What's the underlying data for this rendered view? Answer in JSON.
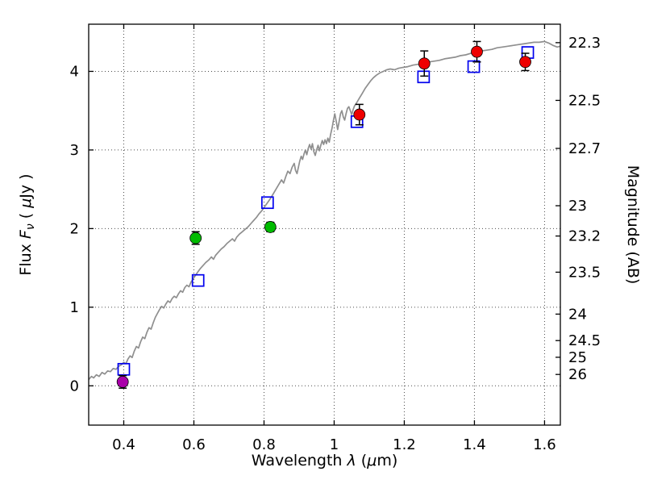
{
  "chart_data": {
    "type": "line",
    "title": "",
    "xlabel_segments": [
      {
        "t": "Wavelength  ",
        "i": false
      },
      {
        "t": "λ",
        "i": true
      },
      {
        "t": " (",
        "i": false
      },
      {
        "t": "μ",
        "i": true
      },
      {
        "t": "m)",
        "i": false
      }
    ],
    "ylabel_left_segments": [
      {
        "t": "Flux  ",
        "i": false
      },
      {
        "t": "F",
        "i": true
      },
      {
        "t": "ν",
        "i": true,
        "sub": true
      },
      {
        "t": "  ( ",
        "i": false
      },
      {
        "t": "μ",
        "i": true
      },
      {
        "t": "Jy )",
        "i": false
      }
    ],
    "ylabel_right": "Magnitude (AB)",
    "xlim": [
      0.3,
      1.645
    ],
    "ylim": [
      -0.5,
      4.6
    ],
    "grid": true,
    "legend": "none",
    "x_ticks": [
      0.4,
      0.6,
      0.8,
      1.0,
      1.2,
      1.4,
      1.6
    ],
    "x_tick_labels": [
      "0.4",
      "0.6",
      "0.8",
      "1",
      "1.2",
      "1.4",
      "1.6"
    ],
    "y_ticks_left": [
      0,
      1,
      2,
      3,
      4
    ],
    "y_tick_labels_left": [
      "0",
      "1",
      "2",
      "3",
      "4"
    ],
    "y_ticks_right": [
      22.3,
      22.5,
      22.7,
      23,
      23.2,
      23.5,
      24,
      24.5,
      25,
      26
    ],
    "y_tick_labels_right": [
      "22.3",
      "22.5",
      "22.7",
      "23",
      "23.2",
      "23.5",
      "24",
      "24.5",
      "25",
      "26"
    ],
    "mag_zero_point": 23.9,
    "colors": {
      "spectrum": "#8f8f8f",
      "model_square": "#0000ee",
      "errorbar": "#000000",
      "grid": "#4d4d4d",
      "axis": "#000000"
    },
    "series": [
      {
        "name": "galaxy-model-spectrum",
        "type": "line",
        "color": "#8f8f8f",
        "xy": [
          [
            0.3,
            0.08
          ],
          [
            0.308,
            0.12
          ],
          [
            0.314,
            0.1
          ],
          [
            0.322,
            0.14
          ],
          [
            0.33,
            0.12
          ],
          [
            0.338,
            0.17
          ],
          [
            0.346,
            0.15
          ],
          [
            0.354,
            0.19
          ],
          [
            0.362,
            0.18
          ],
          [
            0.37,
            0.22
          ],
          [
            0.378,
            0.21
          ],
          [
            0.386,
            0.25
          ],
          [
            0.394,
            0.27
          ],
          [
            0.4,
            0.3
          ],
          [
            0.406,
            0.28
          ],
          [
            0.412,
            0.34
          ],
          [
            0.418,
            0.38
          ],
          [
            0.424,
            0.36
          ],
          [
            0.43,
            0.44
          ],
          [
            0.436,
            0.5
          ],
          [
            0.442,
            0.48
          ],
          [
            0.448,
            0.56
          ],
          [
            0.454,
            0.62
          ],
          [
            0.46,
            0.6
          ],
          [
            0.466,
            0.68
          ],
          [
            0.472,
            0.74
          ],
          [
            0.478,
            0.72
          ],
          [
            0.484,
            0.8
          ],
          [
            0.49,
            0.87
          ],
          [
            0.496,
            0.92
          ],
          [
            0.502,
            0.97
          ],
          [
            0.508,
            1.01
          ],
          [
            0.514,
            0.99
          ],
          [
            0.52,
            1.04
          ],
          [
            0.526,
            1.08
          ],
          [
            0.532,
            1.06
          ],
          [
            0.538,
            1.11
          ],
          [
            0.544,
            1.14
          ],
          [
            0.55,
            1.12
          ],
          [
            0.556,
            1.17
          ],
          [
            0.562,
            1.21
          ],
          [
            0.568,
            1.19
          ],
          [
            0.574,
            1.25
          ],
          [
            0.58,
            1.28
          ],
          [
            0.586,
            1.26
          ],
          [
            0.592,
            1.32
          ],
          [
            0.598,
            1.36
          ],
          [
            0.604,
            1.4
          ],
          [
            0.61,
            1.44
          ],
          [
            0.618,
            1.49
          ],
          [
            0.626,
            1.53
          ],
          [
            0.634,
            1.57
          ],
          [
            0.642,
            1.6
          ],
          [
            0.65,
            1.64
          ],
          [
            0.656,
            1.61
          ],
          [
            0.662,
            1.66
          ],
          [
            0.67,
            1.7
          ],
          [
            0.678,
            1.74
          ],
          [
            0.686,
            1.77
          ],
          [
            0.694,
            1.81
          ],
          [
            0.702,
            1.84
          ],
          [
            0.71,
            1.87
          ],
          [
            0.716,
            1.84
          ],
          [
            0.722,
            1.89
          ],
          [
            0.73,
            1.93
          ],
          [
            0.738,
            1.96
          ],
          [
            0.746,
            1.99
          ],
          [
            0.754,
            2.02
          ],
          [
            0.762,
            2.06
          ],
          [
            0.77,
            2.1
          ],
          [
            0.778,
            2.14
          ],
          [
            0.786,
            2.19
          ],
          [
            0.794,
            2.23
          ],
          [
            0.802,
            2.28
          ],
          [
            0.81,
            2.33
          ],
          [
            0.818,
            2.38
          ],
          [
            0.826,
            2.44
          ],
          [
            0.834,
            2.5
          ],
          [
            0.842,
            2.56
          ],
          [
            0.85,
            2.62
          ],
          [
            0.856,
            2.58
          ],
          [
            0.862,
            2.66
          ],
          [
            0.868,
            2.73
          ],
          [
            0.874,
            2.7
          ],
          [
            0.88,
            2.78
          ],
          [
            0.886,
            2.83
          ],
          [
            0.89,
            2.74
          ],
          [
            0.894,
            2.7
          ],
          [
            0.898,
            2.78
          ],
          [
            0.902,
            2.86
          ],
          [
            0.906,
            2.92
          ],
          [
            0.91,
            2.88
          ],
          [
            0.914,
            2.95
          ],
          [
            0.918,
            3.0
          ],
          [
            0.922,
            2.94
          ],
          [
            0.926,
            3.02
          ],
          [
            0.93,
            3.07
          ],
          [
            0.934,
            3.01
          ],
          [
            0.938,
            3.08
          ],
          [
            0.942,
            2.98
          ],
          [
            0.946,
            2.93
          ],
          [
            0.95,
            3.0
          ],
          [
            0.954,
            3.06
          ],
          [
            0.958,
            2.99
          ],
          [
            0.962,
            3.06
          ],
          [
            0.966,
            3.12
          ],
          [
            0.97,
            3.07
          ],
          [
            0.974,
            3.13
          ],
          [
            0.978,
            3.08
          ],
          [
            0.982,
            3.15
          ],
          [
            0.986,
            3.1
          ],
          [
            0.99,
            3.2
          ],
          [
            0.994,
            3.28
          ],
          [
            0.998,
            3.38
          ],
          [
            1.002,
            3.46
          ],
          [
            1.006,
            3.36
          ],
          [
            1.01,
            3.26
          ],
          [
            1.014,
            3.36
          ],
          [
            1.018,
            3.46
          ],
          [
            1.022,
            3.5
          ],
          [
            1.026,
            3.42
          ],
          [
            1.03,
            3.38
          ],
          [
            1.034,
            3.46
          ],
          [
            1.038,
            3.53
          ],
          [
            1.042,
            3.55
          ],
          [
            1.046,
            3.5
          ],
          [
            1.05,
            3.45
          ],
          [
            1.054,
            3.51
          ],
          [
            1.058,
            3.56
          ],
          [
            1.064,
            3.6
          ],
          [
            1.072,
            3.66
          ],
          [
            1.08,
            3.72
          ],
          [
            1.088,
            3.78
          ],
          [
            1.096,
            3.83
          ],
          [
            1.104,
            3.88
          ],
          [
            1.112,
            3.92
          ],
          [
            1.12,
            3.95
          ],
          [
            1.13,
            3.98
          ],
          [
            1.14,
            4.0
          ],
          [
            1.15,
            4.02
          ],
          [
            1.16,
            4.03
          ],
          [
            1.172,
            4.02
          ],
          [
            1.184,
            4.04
          ],
          [
            1.196,
            4.05
          ],
          [
            1.21,
            4.06
          ],
          [
            1.225,
            4.08
          ],
          [
            1.24,
            4.09
          ],
          [
            1.255,
            4.11
          ],
          [
            1.27,
            4.12
          ],
          [
            1.285,
            4.13
          ],
          [
            1.3,
            4.14
          ],
          [
            1.315,
            4.16
          ],
          [
            1.33,
            4.17
          ],
          [
            1.345,
            4.18
          ],
          [
            1.36,
            4.2
          ],
          [
            1.375,
            4.21
          ],
          [
            1.39,
            4.23
          ],
          [
            1.405,
            4.24
          ],
          [
            1.42,
            4.26
          ],
          [
            1.435,
            4.27
          ],
          [
            1.45,
            4.28
          ],
          [
            1.465,
            4.3
          ],
          [
            1.48,
            4.31
          ],
          [
            1.495,
            4.32
          ],
          [
            1.51,
            4.33
          ],
          [
            1.525,
            4.34
          ],
          [
            1.54,
            4.35
          ],
          [
            1.555,
            4.36
          ],
          [
            1.57,
            4.37
          ],
          [
            1.585,
            4.37
          ],
          [
            1.6,
            4.38
          ],
          [
            1.612,
            4.36
          ],
          [
            1.624,
            4.33
          ],
          [
            1.636,
            4.31
          ],
          [
            1.645,
            4.32
          ]
        ]
      },
      {
        "name": "model-photometry",
        "type": "scatter",
        "marker": "open-square",
        "color": "#0000ee",
        "xy": [
          [
            0.4,
            0.21
          ],
          [
            0.612,
            1.34
          ],
          [
            0.81,
            2.33
          ],
          [
            1.065,
            3.36
          ],
          [
            1.255,
            3.93
          ],
          [
            1.398,
            4.06
          ],
          [
            1.552,
            4.24
          ]
        ]
      },
      {
        "name": "observed-photometry",
        "type": "scatter-errorbar",
        "marker": "filled-circle",
        "points": [
          {
            "x": 0.397,
            "y": 0.05,
            "yerr": 0.08,
            "color": "#aa00aa"
          },
          {
            "x": 0.605,
            "y": 1.88,
            "yerr": 0.08,
            "color": "#00bb00"
          },
          {
            "x": 0.818,
            "y": 2.02,
            "yerr": 0.06,
            "color": "#00bb00"
          },
          {
            "x": 1.072,
            "y": 3.45,
            "yerr": 0.13,
            "color": "#ee0000"
          },
          {
            "x": 1.257,
            "y": 4.1,
            "yerr": 0.16,
            "color": "#ee0000"
          },
          {
            "x": 1.407,
            "y": 4.25,
            "yerr": 0.13,
            "color": "#ee0000"
          },
          {
            "x": 1.545,
            "y": 4.12,
            "yerr": 0.11,
            "color": "#ee0000"
          }
        ]
      }
    ]
  }
}
